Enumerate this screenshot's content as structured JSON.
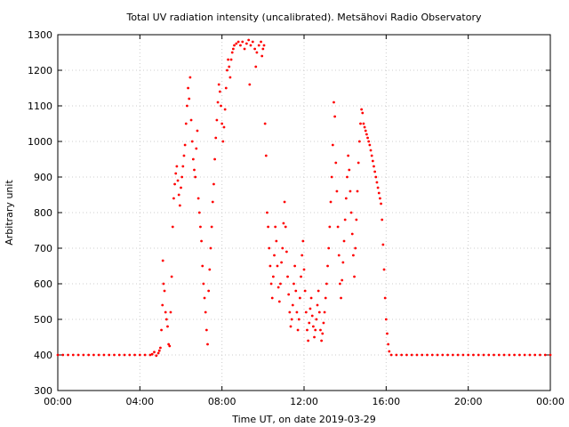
{
  "chart_data": {
    "type": "scatter",
    "title": "Total UV radiation intensity (uncalibrated). Metsähovi Radio Observatory",
    "xlabel": "Time UT, on date 2019-03-29",
    "ylabel": "Arbitrary unit",
    "xlim": [
      0,
      24
    ],
    "ylim": [
      300,
      1300
    ],
    "grid": true,
    "marker_color": "#ff0000",
    "x_ticks": [
      {
        "value": 0,
        "label": "00:00"
      },
      {
        "value": 4,
        "label": "04:00"
      },
      {
        "value": 8,
        "label": "08:00"
      },
      {
        "value": 12,
        "label": "12:00"
      },
      {
        "value": 16,
        "label": "16:00"
      },
      {
        "value": 20,
        "label": "20:00"
      },
      {
        "value": 24,
        "label": "00:00"
      }
    ],
    "y_ticks": [
      {
        "value": 300,
        "label": "300"
      },
      {
        "value": 400,
        "label": "400"
      },
      {
        "value": 500,
        "label": "500"
      },
      {
        "value": 600,
        "label": "600"
      },
      {
        "value": 700,
        "label": "700"
      },
      {
        "value": 800,
        "label": "800"
      },
      {
        "value": 900,
        "label": "900"
      },
      {
        "value": 1000,
        "label": "1000"
      },
      {
        "value": 1100,
        "label": "1100"
      },
      {
        "value": 1200,
        "label": "1200"
      },
      {
        "value": 1300,
        "label": "1300"
      }
    ],
    "points": [
      [
        0.0,
        400
      ],
      [
        0.25,
        400
      ],
      [
        0.5,
        400
      ],
      [
        0.75,
        400
      ],
      [
        1.0,
        400
      ],
      [
        1.25,
        400
      ],
      [
        1.5,
        400
      ],
      [
        1.75,
        400
      ],
      [
        2.0,
        400
      ],
      [
        2.25,
        400
      ],
      [
        2.5,
        400
      ],
      [
        2.75,
        400
      ],
      [
        3.0,
        400
      ],
      [
        3.25,
        400
      ],
      [
        3.5,
        400
      ],
      [
        3.75,
        400
      ],
      [
        4.0,
        400
      ],
      [
        4.25,
        400
      ],
      [
        4.5,
        400
      ],
      [
        4.6,
        402
      ],
      [
        4.7,
        408
      ],
      [
        4.8,
        398
      ],
      [
        4.9,
        405
      ],
      [
        4.95,
        412
      ],
      [
        5.0,
        420
      ],
      [
        5.05,
        470
      ],
      [
        5.1,
        540
      ],
      [
        5.12,
        665
      ],
      [
        5.15,
        600
      ],
      [
        5.2,
        580
      ],
      [
        5.25,
        520
      ],
      [
        5.3,
        500
      ],
      [
        5.35,
        480
      ],
      [
        5.4,
        430
      ],
      [
        5.45,
        425
      ],
      [
        5.5,
        520
      ],
      [
        5.55,
        620
      ],
      [
        5.6,
        760
      ],
      [
        5.65,
        840
      ],
      [
        5.7,
        880
      ],
      [
        5.75,
        910
      ],
      [
        5.8,
        930
      ],
      [
        5.85,
        890
      ],
      [
        5.9,
        850
      ],
      [
        5.95,
        820
      ],
      [
        6.0,
        870
      ],
      [
        6.05,
        900
      ],
      [
        6.1,
        930
      ],
      [
        6.15,
        960
      ],
      [
        6.2,
        990
      ],
      [
        6.25,
        1050
      ],
      [
        6.3,
        1100
      ],
      [
        6.35,
        1150
      ],
      [
        6.4,
        1120
      ],
      [
        6.45,
        1180
      ],
      [
        6.5,
        1060
      ],
      [
        6.55,
        1000
      ],
      [
        6.6,
        950
      ],
      [
        6.65,
        920
      ],
      [
        6.7,
        900
      ],
      [
        6.75,
        980
      ],
      [
        6.8,
        1030
      ],
      [
        6.85,
        840
      ],
      [
        6.9,
        800
      ],
      [
        6.95,
        760
      ],
      [
        7.0,
        720
      ],
      [
        7.05,
        650
      ],
      [
        7.1,
        600
      ],
      [
        7.15,
        560
      ],
      [
        7.2,
        520
      ],
      [
        7.25,
        470
      ],
      [
        7.3,
        430
      ],
      [
        7.35,
        580
      ],
      [
        7.4,
        640
      ],
      [
        7.45,
        700
      ],
      [
        7.5,
        760
      ],
      [
        7.55,
        830
      ],
      [
        7.6,
        880
      ],
      [
        7.65,
        950
      ],
      [
        7.7,
        1010
      ],
      [
        7.75,
        1060
      ],
      [
        7.8,
        1110
      ],
      [
        7.85,
        1160
      ],
      [
        7.9,
        1140
      ],
      [
        7.95,
        1100
      ],
      [
        8.0,
        1050
      ],
      [
        8.05,
        1000
      ],
      [
        8.1,
        1040
      ],
      [
        8.15,
        1090
      ],
      [
        8.2,
        1150
      ],
      [
        8.25,
        1200
      ],
      [
        8.3,
        1230
      ],
      [
        8.35,
        1210
      ],
      [
        8.4,
        1180
      ],
      [
        8.45,
        1230
      ],
      [
        8.5,
        1250
      ],
      [
        8.55,
        1260
      ],
      [
        8.6,
        1270
      ],
      [
        8.7,
        1275
      ],
      [
        8.8,
        1280
      ],
      [
        8.9,
        1270
      ],
      [
        9.0,
        1280
      ],
      [
        9.1,
        1260
      ],
      [
        9.2,
        1275
      ],
      [
        9.3,
        1285
      ],
      [
        9.35,
        1160
      ],
      [
        9.4,
        1270
      ],
      [
        9.5,
        1280
      ],
      [
        9.6,
        1260
      ],
      [
        9.65,
        1210
      ],
      [
        9.7,
        1250
      ],
      [
        9.8,
        1270
      ],
      [
        9.9,
        1280
      ],
      [
        9.95,
        1240
      ],
      [
        10.0,
        1260
      ],
      [
        10.05,
        1270
      ],
      [
        10.1,
        1050
      ],
      [
        10.15,
        960
      ],
      [
        10.2,
        800
      ],
      [
        10.25,
        760
      ],
      [
        10.3,
        700
      ],
      [
        10.35,
        650
      ],
      [
        10.4,
        600
      ],
      [
        10.45,
        560
      ],
      [
        10.5,
        620
      ],
      [
        10.55,
        680
      ],
      [
        10.6,
        760
      ],
      [
        10.65,
        720
      ],
      [
        10.7,
        650
      ],
      [
        10.75,
        590
      ],
      [
        10.8,
        550
      ],
      [
        10.85,
        600
      ],
      [
        10.9,
        660
      ],
      [
        10.95,
        700
      ],
      [
        11.0,
        770
      ],
      [
        11.05,
        830
      ],
      [
        11.1,
        760
      ],
      [
        11.15,
        690
      ],
      [
        11.2,
        620
      ],
      [
        11.25,
        570
      ],
      [
        11.3,
        520
      ],
      [
        11.35,
        480
      ],
      [
        11.4,
        500
      ],
      [
        11.45,
        540
      ],
      [
        11.5,
        600
      ],
      [
        11.55,
        650
      ],
      [
        11.6,
        580
      ],
      [
        11.65,
        520
      ],
      [
        11.7,
        470
      ],
      [
        11.75,
        500
      ],
      [
        11.8,
        560
      ],
      [
        11.85,
        620
      ],
      [
        11.9,
        680
      ],
      [
        11.95,
        720
      ],
      [
        12.0,
        640
      ],
      [
        12.05,
        580
      ],
      [
        12.1,
        520
      ],
      [
        12.15,
        470
      ],
      [
        12.2,
        440
      ],
      [
        12.25,
        490
      ],
      [
        12.3,
        530
      ],
      [
        12.35,
        560
      ],
      [
        12.4,
        510
      ],
      [
        12.45,
        480
      ],
      [
        12.5,
        450
      ],
      [
        12.55,
        470
      ],
      [
        12.6,
        500
      ],
      [
        12.65,
        540
      ],
      [
        12.7,
        580
      ],
      [
        12.75,
        520
      ],
      [
        12.8,
        470
      ],
      [
        12.85,
        440
      ],
      [
        12.9,
        460
      ],
      [
        12.95,
        490
      ],
      [
        13.0,
        520
      ],
      [
        13.05,
        560
      ],
      [
        13.1,
        600
      ],
      [
        13.15,
        650
      ],
      [
        13.2,
        700
      ],
      [
        13.25,
        760
      ],
      [
        13.3,
        830
      ],
      [
        13.35,
        900
      ],
      [
        13.4,
        990
      ],
      [
        13.45,
        1110
      ],
      [
        13.5,
        1070
      ],
      [
        13.55,
        940
      ],
      [
        13.6,
        860
      ],
      [
        13.65,
        760
      ],
      [
        13.7,
        680
      ],
      [
        13.75,
        600
      ],
      [
        13.8,
        560
      ],
      [
        13.85,
        610
      ],
      [
        13.9,
        660
      ],
      [
        13.95,
        720
      ],
      [
        14.0,
        780
      ],
      [
        14.05,
        840
      ],
      [
        14.1,
        900
      ],
      [
        14.15,
        960
      ],
      [
        14.2,
        920
      ],
      [
        14.25,
        860
      ],
      [
        14.3,
        800
      ],
      [
        14.35,
        740
      ],
      [
        14.4,
        680
      ],
      [
        14.45,
        620
      ],
      [
        14.5,
        700
      ],
      [
        14.55,
        780
      ],
      [
        14.6,
        860
      ],
      [
        14.65,
        940
      ],
      [
        14.7,
        1000
      ],
      [
        14.75,
        1050
      ],
      [
        14.8,
        1090
      ],
      [
        14.85,
        1080
      ],
      [
        14.9,
        1050
      ],
      [
        14.95,
        1040
      ],
      [
        15.0,
        1030
      ],
      [
        15.05,
        1020
      ],
      [
        15.1,
        1010
      ],
      [
        15.15,
        1000
      ],
      [
        15.2,
        990
      ],
      [
        15.25,
        975
      ],
      [
        15.3,
        960
      ],
      [
        15.35,
        945
      ],
      [
        15.4,
        930
      ],
      [
        15.45,
        915
      ],
      [
        15.5,
        900
      ],
      [
        15.55,
        885
      ],
      [
        15.6,
        870
      ],
      [
        15.65,
        855
      ],
      [
        15.7,
        840
      ],
      [
        15.75,
        825
      ],
      [
        15.8,
        780
      ],
      [
        15.85,
        710
      ],
      [
        15.9,
        640
      ],
      [
        15.95,
        560
      ],
      [
        16.0,
        500
      ],
      [
        16.05,
        460
      ],
      [
        16.1,
        430
      ],
      [
        16.15,
        410
      ],
      [
        16.25,
        400
      ],
      [
        16.5,
        400
      ],
      [
        16.75,
        400
      ],
      [
        17.0,
        400
      ],
      [
        17.25,
        400
      ],
      [
        17.5,
        400
      ],
      [
        17.75,
        400
      ],
      [
        18.0,
        400
      ],
      [
        18.25,
        400
      ],
      [
        18.5,
        400
      ],
      [
        18.75,
        400
      ],
      [
        19.0,
        400
      ],
      [
        19.25,
        400
      ],
      [
        19.5,
        400
      ],
      [
        19.75,
        400
      ],
      [
        20.0,
        400
      ],
      [
        20.25,
        400
      ],
      [
        20.5,
        400
      ],
      [
        20.75,
        400
      ],
      [
        21.0,
        400
      ],
      [
        21.25,
        400
      ],
      [
        21.5,
        400
      ],
      [
        21.75,
        400
      ],
      [
        22.0,
        400
      ],
      [
        22.25,
        400
      ],
      [
        22.5,
        400
      ],
      [
        22.75,
        400
      ],
      [
        23.0,
        400
      ],
      [
        23.25,
        400
      ],
      [
        23.5,
        400
      ],
      [
        23.75,
        400
      ],
      [
        24.0,
        400
      ]
    ]
  }
}
